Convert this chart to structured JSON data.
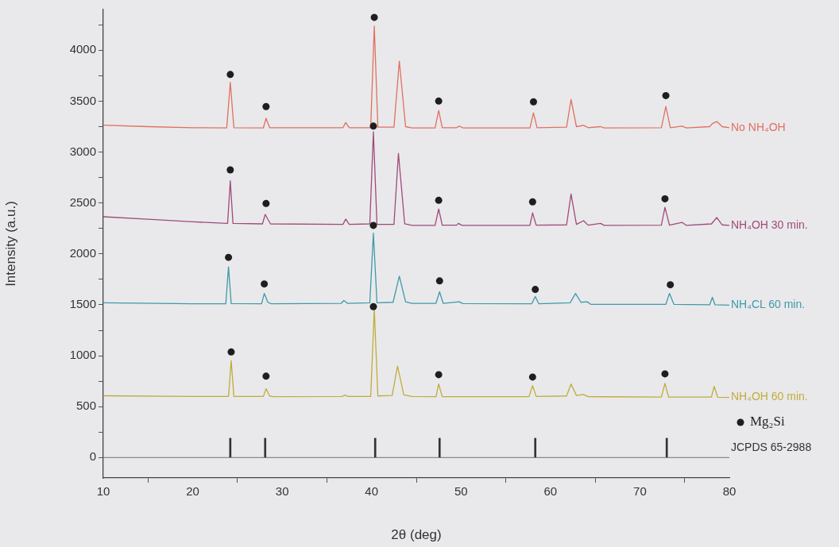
{
  "chart_data": {
    "type": "line",
    "xlabel": "2θ (deg)",
    "ylabel": "Intensity (a.u.)",
    "xlim": [
      10,
      80
    ],
    "xticks": [
      10,
      20,
      30,
      40,
      50,
      60,
      70,
      80
    ],
    "ylim": [
      -200,
      4400
    ],
    "yticks": [
      0,
      {
        "value": 250,
        "label": null
      },
      500,
      {
        "value": 750,
        "label": null
      },
      1000,
      {
        "value": 1250,
        "label": null
      },
      1500,
      {
        "value": 1750,
        "label": null
      },
      2000,
      {
        "value": 2250,
        "label": null
      },
      2500,
      {
        "value": 2750,
        "label": null
      },
      3000,
      {
        "value": 3250,
        "label": null
      },
      3500,
      {
        "value": 3750,
        "label": null
      },
      4000,
      {
        "value": 4250,
        "label": null
      }
    ],
    "legend": "bottom right",
    "marker": "none",
    "ref_lines": [
      {
        "axis": "y",
        "value": 0,
        "color": "#8a8a8a"
      }
    ],
    "series": [
      {
        "name": "No NH₄OH",
        "color": "#e07060",
        "x": [
          10,
          15,
          20,
          23.8,
          24.2,
          24.6,
          27.9,
          28.2,
          28.6,
          36.8,
          37.1,
          37.5,
          39.9,
          40.3,
          40.7,
          42.5,
          43.1,
          43.8,
          44.5,
          47.1,
          47.5,
          47.9,
          49.5,
          49.8,
          50.2,
          57.7,
          58.1,
          58.5,
          61.8,
          62.3,
          62.9,
          63.7,
          64.2,
          65.6,
          66,
          72.4,
          72.9,
          73.4,
          74.7,
          75.2,
          77.8,
          78.1,
          78.6,
          79.2,
          80
        ],
        "values": [
          3265,
          3250,
          3240,
          3238,
          3685,
          3240,
          3238,
          3332,
          3240,
          3240,
          3290,
          3240,
          3240,
          4238,
          3245,
          3245,
          3893,
          3250,
          3238,
          3238,
          3409,
          3240,
          3240,
          3255,
          3238,
          3238,
          3386,
          3240,
          3245,
          3517,
          3250,
          3263,
          3240,
          3250,
          3238,
          3240,
          3447,
          3240,
          3255,
          3238,
          3250,
          3280,
          3300,
          3250,
          3240
        ]
      },
      {
        "name": "NH₄OH 30 min.",
        "color": "#a04a7a",
        "x": [
          10,
          15,
          20,
          23.9,
          24.2,
          24.5,
          27.8,
          28.1,
          28.4,
          28.7,
          36.8,
          37.1,
          37.5,
          39.8,
          40.2,
          40.6,
          42.5,
          43,
          43.7,
          44.5,
          47.1,
          47.5,
          47.9,
          49.5,
          49.7,
          50.1,
          57.7,
          58,
          58.4,
          61.8,
          62.3,
          62.9,
          63.7,
          64.2,
          65.6,
          66,
          72.4,
          72.8,
          73.3,
          74.7,
          75.2,
          78,
          78.6,
          79.2,
          80
        ],
        "values": [
          2365,
          2340,
          2315,
          2300,
          2718,
          2300,
          2295,
          2388,
          2340,
          2295,
          2290,
          2342,
          2290,
          2295,
          3200,
          2290,
          2290,
          2987,
          2295,
          2280,
          2280,
          2441,
          2282,
          2282,
          2300,
          2280,
          2280,
          2403,
          2282,
          2285,
          2588,
          2290,
          2326,
          2282,
          2300,
          2280,
          2282,
          2457,
          2282,
          2310,
          2280,
          2295,
          2357,
          2285,
          2280
        ]
      },
      {
        "name": "NH₄CL 60 min.",
        "color": "#3f9aa8",
        "x": [
          10,
          20,
          23.7,
          24,
          24.3,
          27.7,
          28,
          28.4,
          28.8,
          36.6,
          36.9,
          37.3,
          39.8,
          40.2,
          40.6,
          42.4,
          43.1,
          43.8,
          44.5,
          47.2,
          47.6,
          48,
          49.8,
          50.2,
          57.9,
          58.3,
          58.7,
          62.2,
          62.8,
          63.4,
          64.1,
          64.5,
          72.9,
          73.3,
          73.8,
          77.8,
          78.1,
          78.4,
          80
        ],
        "values": [
          1520,
          1510,
          1510,
          1873,
          1512,
          1510,
          1612,
          1525,
          1510,
          1515,
          1543,
          1515,
          1520,
          2204,
          1520,
          1525,
          1781,
          1530,
          1515,
          1515,
          1628,
          1515,
          1530,
          1512,
          1510,
          1582,
          1510,
          1520,
          1612,
          1525,
          1530,
          1505,
          1505,
          1612,
          1505,
          1500,
          1574,
          1500,
          1497
        ]
      },
      {
        "name": "NH₄OH 60 min.",
        "color": "#c0ac3c",
        "x": [
          10,
          20,
          24,
          24.3,
          24.6,
          27.9,
          28.2,
          28.6,
          29,
          36.7,
          37,
          37.4,
          39.9,
          40.3,
          40.7,
          42.3,
          42.9,
          43.6,
          44.5,
          47.2,
          47.5,
          47.9,
          57.6,
          58,
          58.4,
          61.8,
          62.3,
          62.9,
          63.7,
          64.2,
          72.4,
          72.8,
          73.2,
          78,
          78.3,
          78.7,
          80
        ],
        "values": [
          607,
          600,
          600,
          952,
          600,
          600,
          676,
          605,
          598,
          600,
          614,
          600,
          600,
          1459,
          605,
          610,
          898,
          615,
          600,
          598,
          722,
          598,
          598,
          706,
          600,
          605,
          722,
          610,
          620,
          598,
          595,
          729,
          595,
          595,
          699,
          593,
          591
        ]
      },
      {
        "name": "Mg₂Si",
        "type": "scatter",
        "marker": "circle",
        "color": "#1e1e1e",
        "x": [
          24.2,
          28.2,
          40.3,
          47.5,
          58.1,
          72.9,
          24.2,
          28.2,
          40.2,
          47.5,
          58,
          72.8,
          24,
          28,
          40.2,
          47.6,
          58.3,
          73.4,
          24.3,
          28.2,
          40.2,
          47.5,
          58,
          72.8
        ],
        "values": [
          3762,
          3447,
          4323,
          3501,
          3494,
          3555,
          2825,
          2495,
          3255,
          2526,
          2511,
          2541,
          1966,
          1705,
          2280,
          1735,
          1651,
          1697,
          1037,
          799,
          1482,
          814,
          791,
          822
        ]
      },
      {
        "name": "JCPDS 65-2988",
        "type": "bar",
        "color": "#333333",
        "x": [
          24.2,
          28.1,
          40.4,
          47.6,
          58.3,
          73
        ],
        "values": [
          190,
          190,
          190,
          190,
          190,
          190
        ]
      }
    ]
  }
}
